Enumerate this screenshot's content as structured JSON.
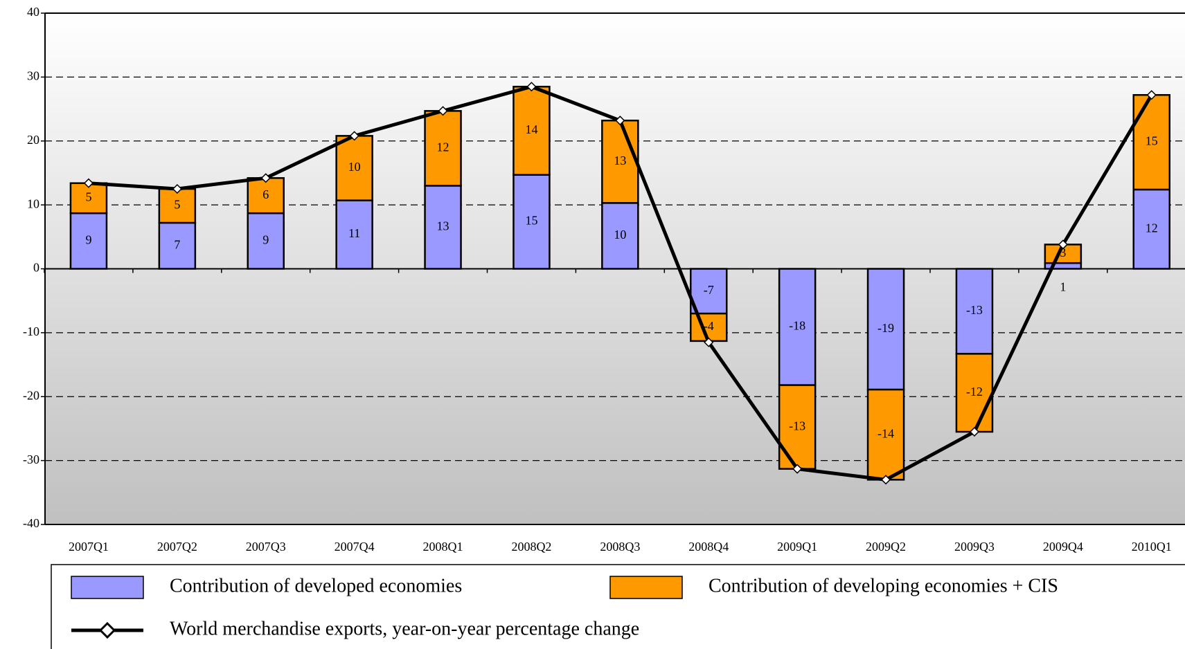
{
  "chart_data": {
    "type": "bar",
    "categories": [
      "2007Q1",
      "2007Q2",
      "2007Q3",
      "2007Q4",
      "2008Q1",
      "2008Q2",
      "2008Q3",
      "2008Q4",
      "2009Q1",
      "2009Q2",
      "2009Q3",
      "2009Q4",
      "2010Q1"
    ],
    "series": [
      {
        "name": "Contribution of developed economies",
        "color": "#9999ff",
        "values": [
          8.7,
          7.2,
          8.7,
          10.7,
          13.0,
          14.7,
          10.3,
          -7.0,
          -18.2,
          -18.9,
          -13.3,
          0.9,
          12.4
        ],
        "value_labels": [
          "9",
          "7",
          "9",
          "11",
          "13",
          "15",
          "10",
          "-7",
          "-18",
          "-19",
          "-13",
          "1",
          "12"
        ]
      },
      {
        "name": "Contribution of developing economies + CIS",
        "color": "#ff9900",
        "values": [
          4.7,
          5.3,
          5.5,
          10.1,
          11.7,
          13.8,
          12.9,
          -4.3,
          -13.1,
          -14.1,
          -12.2,
          2.9,
          14.8
        ],
        "value_labels": [
          "5",
          "5",
          "6",
          "10",
          "12",
          "14",
          "13",
          "-4",
          "-13",
          "-14",
          "-12",
          "3",
          "15"
        ]
      },
      {
        "name": "World merchandise exports, year-on-year percentage change",
        "type": "line",
        "color": "#000000",
        "values": [
          13.4,
          12.5,
          14.2,
          20.8,
          24.7,
          28.5,
          23.2,
          -11.5,
          -31.3,
          -33.0,
          -25.5,
          3.8,
          27.2
        ]
      }
    ],
    "ylim": [
      -40,
      40
    ],
    "yticks": [
      -40,
      -30,
      -20,
      -10,
      0,
      10,
      20,
      30,
      40
    ],
    "grid": true
  }
}
